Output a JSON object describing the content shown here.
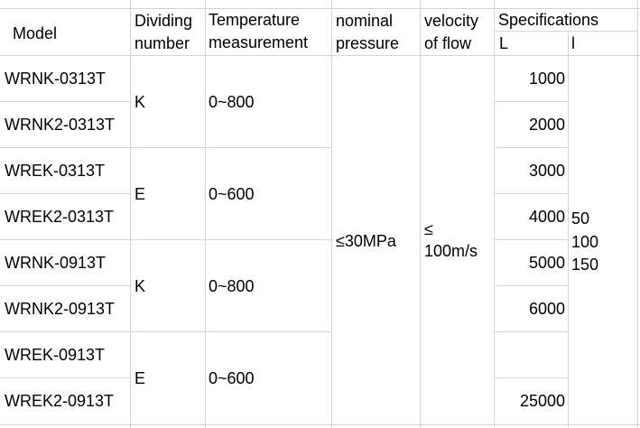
{
  "headers": {
    "model": "Model",
    "dividing_line1": "Dividing",
    "dividing_line2": "number",
    "temp_line1": "Temperature",
    "temp_line2": "measurement",
    "pressure_line1": "nominal",
    "pressure_line2": "pressure",
    "velocity_line1": "velocity",
    "velocity_line2": "of flow",
    "specs": "Specifications",
    "spec_L": "L",
    "spec_l": "l"
  },
  "models": [
    "WRNK-0313T",
    "WRNK2-0313T",
    "WREK-0313T",
    "WREK2-0313T",
    "WRNK-0913T",
    "WRNK2-0913T",
    "WREK-0913T",
    "WREK2-0913T"
  ],
  "groups": [
    {
      "dividing": "K",
      "temperature": "0~800"
    },
    {
      "dividing": "E",
      "temperature": "0~600"
    },
    {
      "dividing": "K",
      "temperature": "0~800"
    },
    {
      "dividing": "E",
      "temperature": "0~600"
    }
  ],
  "pressure": "≤30MPa",
  "velocity_line1": "≤",
  "velocity_line2": "100m/s",
  "spec_L_values": [
    "1000",
    "2000",
    "3000",
    "4000",
    "5000",
    "6000",
    "",
    "25000"
  ],
  "spec_l_values": [
    "50",
    "100",
    "150"
  ]
}
